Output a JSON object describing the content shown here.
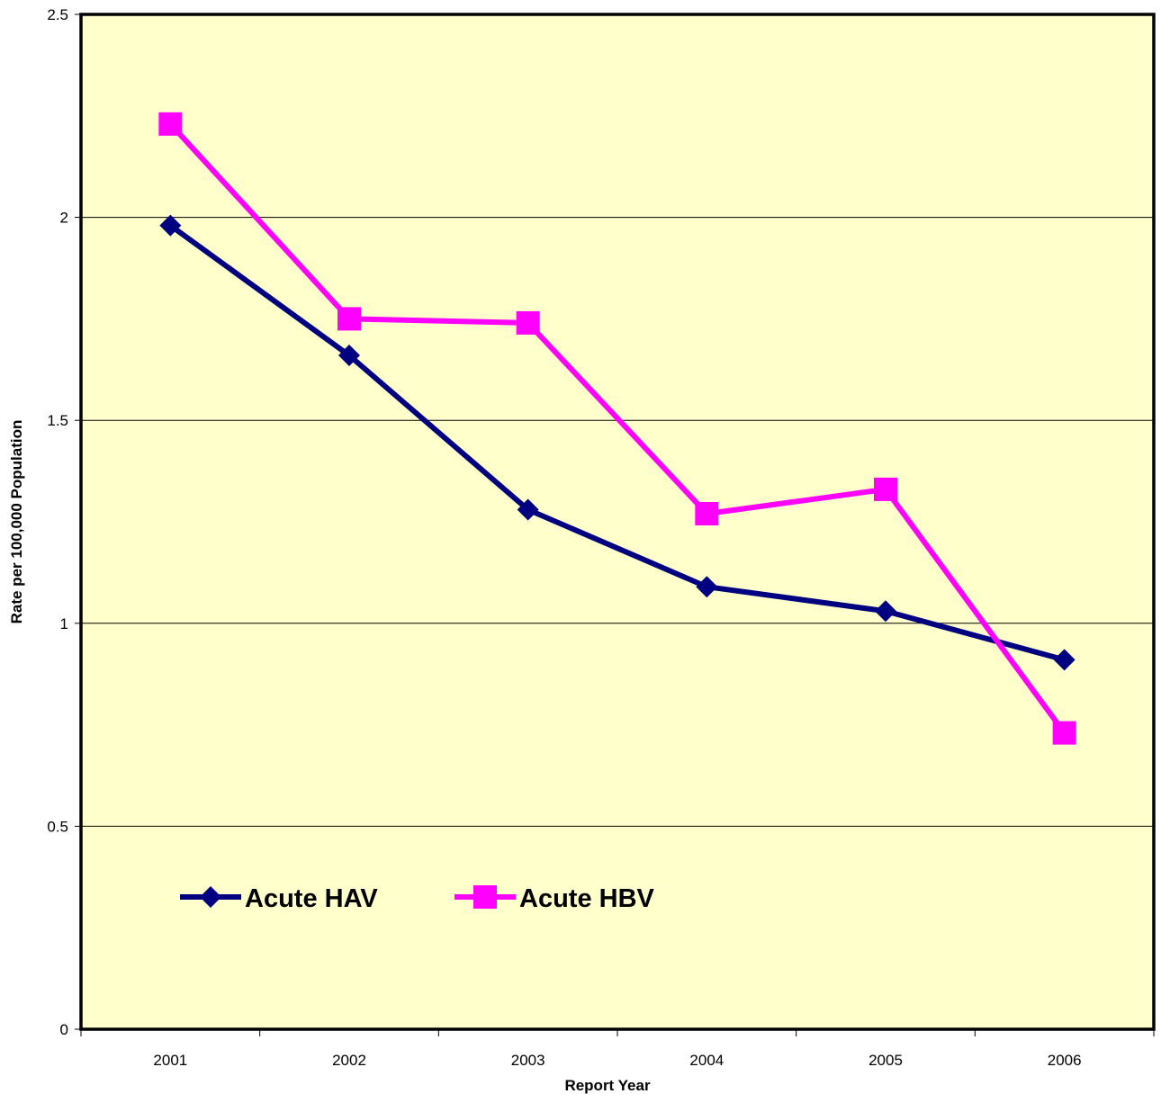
{
  "chart_data": {
    "type": "line",
    "title": "",
    "xlabel": "Report Year",
    "ylabel": "Rate per 100,000 Population",
    "categories": [
      "2001",
      "2002",
      "2003",
      "2004",
      "2005",
      "2006"
    ],
    "ylim": [
      0,
      2.5
    ],
    "yticks": [
      0,
      0.5,
      1,
      1.5,
      2,
      2.5
    ],
    "ytick_labels": [
      "0",
      "0.5",
      "1",
      "1.5",
      "2",
      "2.5"
    ],
    "grid": true,
    "legend_position": "bottom-left inside",
    "plot_background": "#FFFFCC",
    "series": [
      {
        "name": "Acute HAV",
        "color": "#000080",
        "marker": "diamond",
        "values": [
          1.98,
          1.66,
          1.28,
          1.09,
          1.03,
          0.91
        ]
      },
      {
        "name": "Acute HBV",
        "color": "#FF00FF",
        "marker": "square",
        "values": [
          2.23,
          1.75,
          1.74,
          1.27,
          1.33,
          0.73
        ]
      }
    ]
  }
}
